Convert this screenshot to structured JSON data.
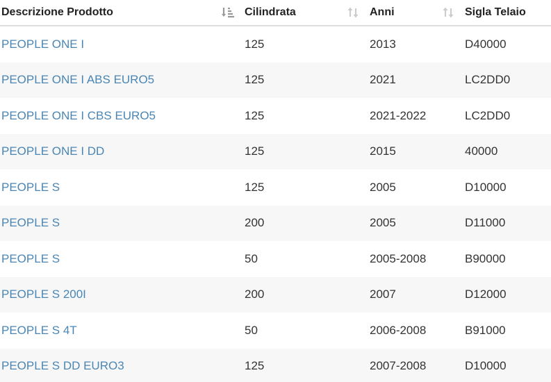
{
  "table": {
    "columns": [
      {
        "label": "Descrizione Prodotto",
        "sort_icon": "sort-amount-desc-icon",
        "sort_state": "active"
      },
      {
        "label": "Cilindrata",
        "sort_icon": "sort-both-icon",
        "sort_state": "inactive"
      },
      {
        "label": "Anni",
        "sort_icon": "sort-both-icon",
        "sort_state": "inactive"
      },
      {
        "label": "Sigla Telaio"
      }
    ],
    "rows": [
      {
        "product": "PEOPLE ONE I",
        "cc": "125",
        "years": "2013",
        "frame": "D40000"
      },
      {
        "product": "PEOPLE ONE I ABS EURO5",
        "cc": "125",
        "years": "2021",
        "frame": "LC2DD0"
      },
      {
        "product": "PEOPLE ONE I CBS EURO5",
        "cc": "125",
        "years": "2021-2022",
        "frame": "LC2DD0"
      },
      {
        "product": "PEOPLE ONE I DD",
        "cc": "125",
        "years": "2015",
        "frame": "40000"
      },
      {
        "product": "PEOPLE S",
        "cc": "125",
        "years": "2005",
        "frame": "D10000"
      },
      {
        "product": "PEOPLE S",
        "cc": "200",
        "years": "2005",
        "frame": "D11000"
      },
      {
        "product": "PEOPLE S",
        "cc": "50",
        "years": "2005-2008",
        "frame": "B90000"
      },
      {
        "product": "PEOPLE S 200I",
        "cc": "200",
        "years": "2007",
        "frame": "D12000"
      },
      {
        "product": "PEOPLE S 4T",
        "cc": "50",
        "years": "2006-2008",
        "frame": "B91000"
      },
      {
        "product": "PEOPLE S DD EURO3",
        "cc": "125",
        "years": "2007-2008",
        "frame": "D10000"
      }
    ]
  },
  "colors": {
    "link": "#4a86b4",
    "text": "#333333",
    "header_text": "#222222",
    "stripe": "#f7f7f7",
    "icon_inactive": "#cccccc",
    "icon_active": "#999999"
  }
}
